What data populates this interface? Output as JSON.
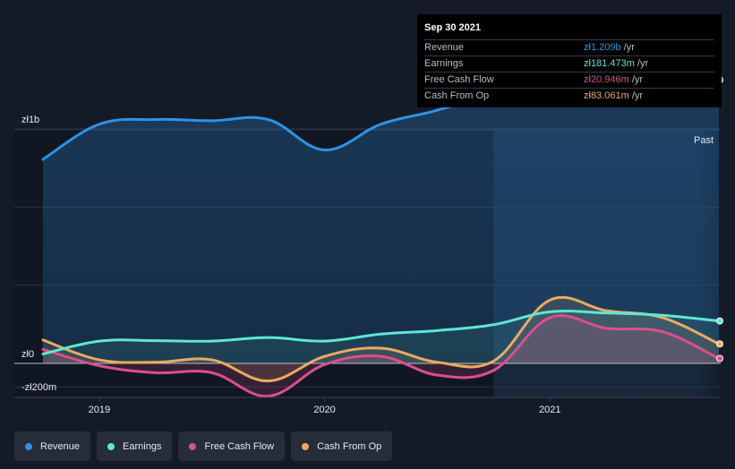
{
  "tooltip": {
    "date": "Sep 30 2021",
    "rows": [
      {
        "label": "Revenue",
        "value": "zł1.209b",
        "unit": " /yr",
        "color": "#2e92e6"
      },
      {
        "label": "Earnings",
        "value": "zł181.473m",
        "unit": " /yr",
        "color": "#5ee6d4"
      },
      {
        "label": "Free Cash Flow",
        "value": "zł20.946m",
        "unit": " /yr",
        "color": "#d94f8f"
      },
      {
        "label": "Cash From Op",
        "value": "zł83.061m",
        "unit": " /yr",
        "color": "#e9aa62"
      }
    ]
  },
  "past_label": "Past",
  "legend": [
    {
      "label": "Revenue",
      "color": "#2e92e6"
    },
    {
      "label": "Earnings",
      "color": "#5ee6d4"
    },
    {
      "label": "Free Cash Flow",
      "color": "#d94f8f"
    },
    {
      "label": "Cash From Op",
      "color": "#e9aa62"
    }
  ],
  "chart_data": {
    "type": "line",
    "y_tick_labels": [
      "zł1b",
      "zł0",
      "-zł200m"
    ],
    "x_tick_labels": [
      "2019",
      "2020",
      "2021"
    ],
    "x_ticks": [
      2019.0,
      2020.0,
      2021.0
    ],
    "xlim": [
      2018.75,
      2021.75
    ],
    "ylim": [
      -200,
      1400
    ],
    "past_region_start": 2020.75,
    "legend_position": "bottom",
    "x": [
      2018.75,
      2019.0,
      2019.25,
      2019.5,
      2019.75,
      2020.0,
      2020.25,
      2020.5,
      2020.75,
      2021.0,
      2021.25,
      2021.5,
      2021.75
    ],
    "series": [
      {
        "name": "Revenue",
        "color": "#2e92e6",
        "values": [
          870,
          1020,
          1040,
          1035,
          1040,
          910,
          1020,
          1080,
          1160,
          1330,
          1340,
          1110,
          1209
        ]
      },
      {
        "name": "Earnings",
        "color": "#5ee6d4",
        "values": [
          40,
          95,
          97,
          95,
          110,
          95,
          125,
          140,
          165,
          220,
          215,
          205,
          181
        ]
      },
      {
        "name": "Free Cash Flow",
        "color": "#d94f8f",
        "values": [
          60,
          -10,
          -40,
          -40,
          -140,
          -5,
          30,
          -50,
          -30,
          195,
          150,
          135,
          21
        ]
      },
      {
        "name": "Cash From Op",
        "color": "#e9aa62",
        "values": [
          100,
          15,
          5,
          15,
          -75,
          30,
          65,
          5,
          10,
          270,
          225,
          195,
          83
        ]
      }
    ]
  }
}
